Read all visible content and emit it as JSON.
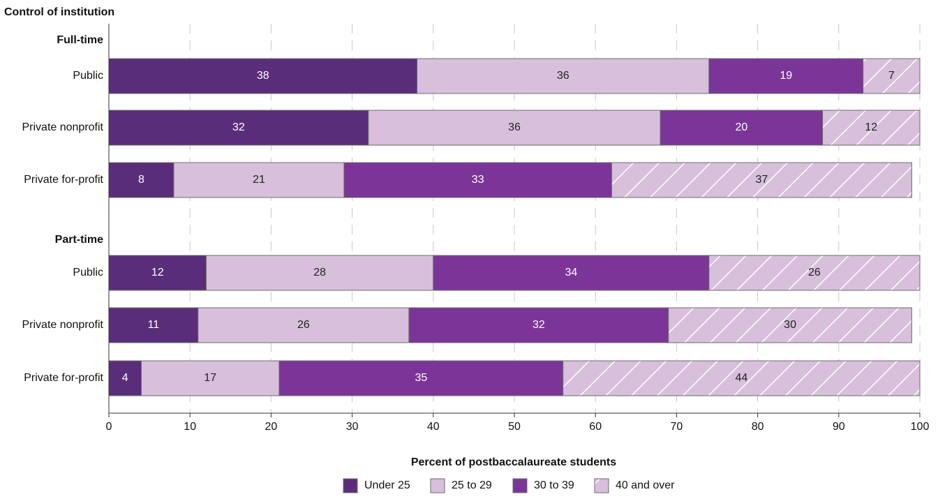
{
  "chart_data": {
    "type": "bar",
    "orientation": "horizontal",
    "stacked": true,
    "title": "Control of institution",
    "xlabel": "Percent of postbaccalaureate students",
    "xlim": [
      0,
      100
    ],
    "xticks": [
      0,
      10,
      20,
      30,
      40,
      50,
      60,
      70,
      80,
      90,
      100
    ],
    "grid": "vertical, dashed",
    "legend_position": "bottom",
    "series": [
      {
        "name": "Under 25",
        "color": "#5a2d7a",
        "pattern": "solid",
        "label_color": "#ffffff"
      },
      {
        "name": "25 to 29",
        "color": "#d8bfdc",
        "pattern": "solid",
        "label_color": "#222222"
      },
      {
        "name": "30 to 39",
        "color": "#7b3598",
        "pattern": "solid",
        "label_color": "#ffffff"
      },
      {
        "name": "40 and over",
        "color": "#d8bfdc",
        "pattern": "diagonal-hatch",
        "label_color": "#222222"
      }
    ],
    "groups": [
      {
        "name": "Full-time",
        "rows": [
          {
            "category": "Public",
            "values": [
              38,
              36,
              19,
              7
            ]
          },
          {
            "category": "Private nonprofit",
            "values": [
              32,
              36,
              20,
              12
            ]
          },
          {
            "category": "Private for-profit",
            "values": [
              8,
              21,
              33,
              37
            ]
          }
        ]
      },
      {
        "name": "Part-time",
        "rows": [
          {
            "category": "Public",
            "values": [
              12,
              28,
              34,
              26
            ]
          },
          {
            "category": "Private nonprofit",
            "values": [
              11,
              26,
              32,
              30
            ]
          },
          {
            "category": "Private for-profit",
            "values": [
              4,
              17,
              35,
              44
            ]
          }
        ]
      }
    ]
  }
}
